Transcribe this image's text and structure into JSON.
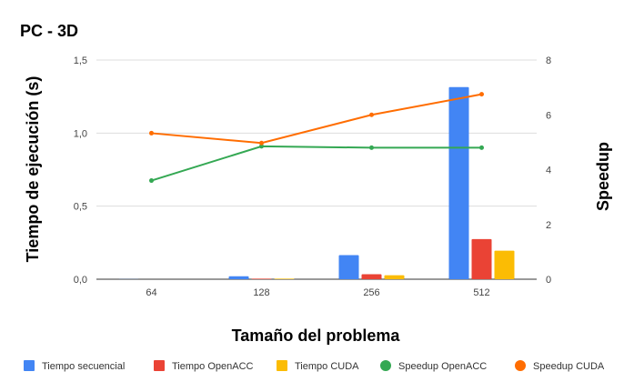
{
  "chart_data": {
    "type": "bar",
    "title": "PC - 3D",
    "xlabel": "Tamaño del problema",
    "ylabel": "Tiempo de ejecución (s)",
    "y2label": "Speedup",
    "categories": [
      "64",
      "128",
      "256",
      "512"
    ],
    "ylim": [
      0,
      1.5
    ],
    "y_ticks": [
      "0,0",
      "0,5",
      "1,0",
      "1,5"
    ],
    "y2lim": [
      0,
      8
    ],
    "y2_ticks": [
      "0",
      "2",
      "4",
      "6",
      "8"
    ],
    "grid": true,
    "legend_position": "bottom",
    "series": [
      {
        "name": "Tiempo secuencial",
        "kind": "bar",
        "axis": "left",
        "color": "#4285f4",
        "values": [
          0.001,
          0.02,
          0.165,
          1.315
        ]
      },
      {
        "name": "Tiempo OpenACC",
        "kind": "bar",
        "axis": "left",
        "color": "#ea4335",
        "values": [
          0.0003,
          0.004,
          0.034,
          0.275
        ]
      },
      {
        "name": "Tiempo CUDA",
        "kind": "bar",
        "axis": "left",
        "color": "#fbbc04",
        "values": [
          0.0002,
          0.004,
          0.027,
          0.195
        ]
      },
      {
        "name": "Speedup OpenACC",
        "kind": "line",
        "axis": "right",
        "color": "#34a853",
        "values": [
          3.6,
          4.85,
          4.8,
          4.8
        ]
      },
      {
        "name": "Speedup CUDA",
        "kind": "line",
        "axis": "right",
        "color": "#ff6d01",
        "values": [
          5.33,
          4.97,
          6.0,
          6.75
        ]
      }
    ]
  }
}
